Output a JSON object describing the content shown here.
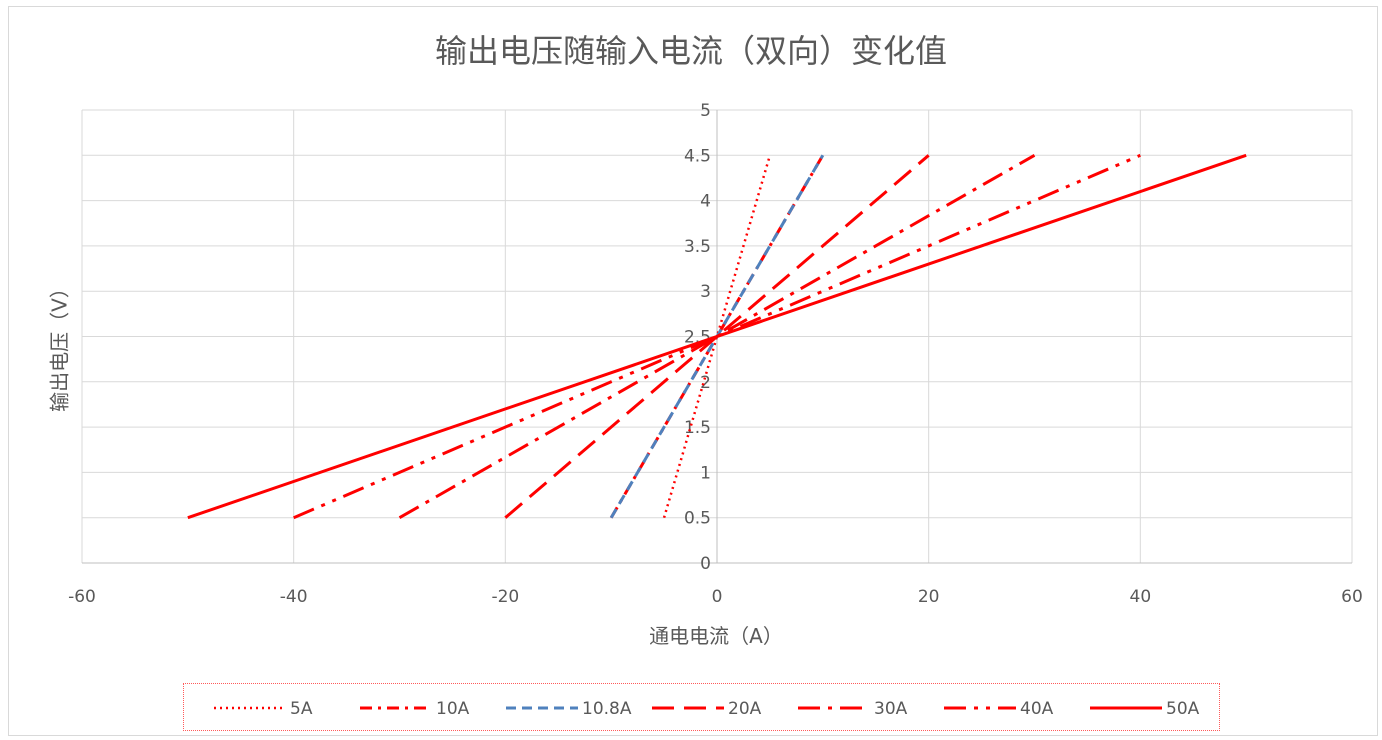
{
  "chart_data": {
    "type": "line",
    "title": "输出电压随输入电流（双向）变化值",
    "xlabel": "通电电流（A）",
    "ylabel": "输出电压（V）",
    "xlim": [
      -60,
      60
    ],
    "ylim": [
      0,
      5
    ],
    "x_ticks": [
      "-60",
      "-40",
      "-20",
      "0",
      "20",
      "40",
      "60"
    ],
    "y_ticks": [
      "0",
      "0.5",
      "1",
      "1.5",
      "2",
      "2.5",
      "3",
      "3.5",
      "4",
      "4.5",
      "5"
    ],
    "grid": true,
    "legend_position": "bottom",
    "series": [
      {
        "name": "5A",
        "style": "dotted",
        "color": "#ff0000",
        "x": [
          -5,
          5
        ],
        "y": [
          0.5,
          4.5
        ]
      },
      {
        "name": "10A",
        "style": "dash-dot",
        "color": "#ff0000",
        "x": [
          -10,
          10
        ],
        "y": [
          0.5,
          4.5
        ]
      },
      {
        "name": "10.8A",
        "style": "dashed",
        "color": "#4f81bd",
        "x": [
          -10,
          10
        ],
        "y": [
          0.5,
          4.5
        ]
      },
      {
        "name": "20A",
        "style": "long-dash",
        "color": "#ff0000",
        "x": [
          -20,
          20
        ],
        "y": [
          0.5,
          4.5
        ]
      },
      {
        "name": "30A",
        "style": "long-dash-dot",
        "color": "#ff0000",
        "x": [
          -30,
          30
        ],
        "y": [
          0.5,
          4.5
        ]
      },
      {
        "name": "40A",
        "style": "long-dash-dot-dot",
        "color": "#ff0000",
        "x": [
          -40,
          40
        ],
        "y": [
          0.5,
          4.5
        ]
      },
      {
        "name": "50A",
        "style": "solid",
        "color": "#ff0000",
        "x": [
          -50,
          50
        ],
        "y": [
          0.5,
          4.5
        ]
      }
    ]
  }
}
